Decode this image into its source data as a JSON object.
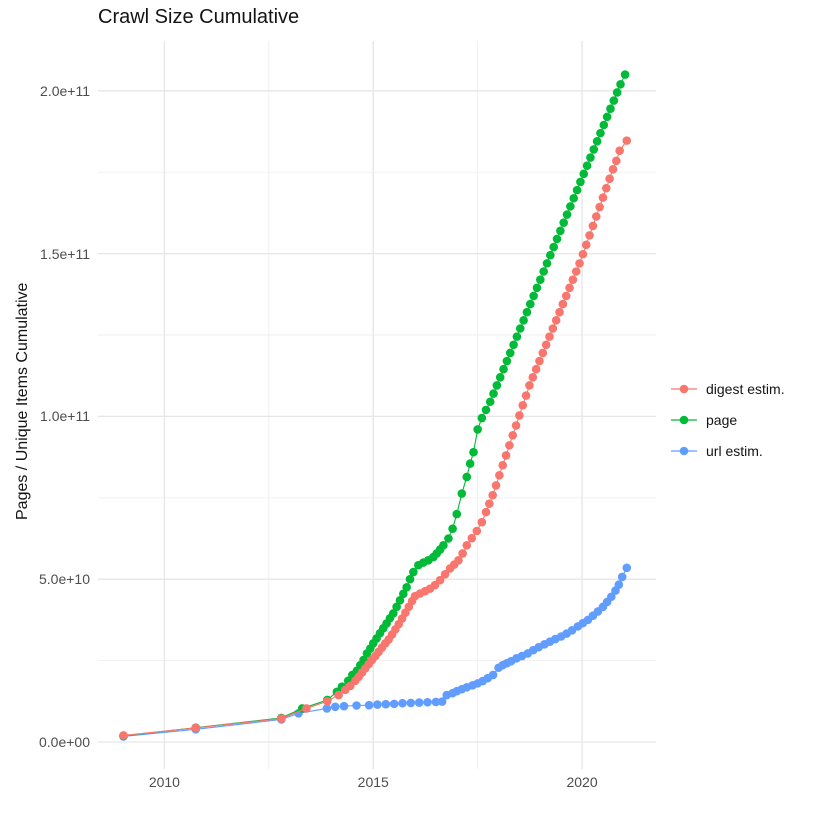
{
  "title": "Crawl Size Cumulative",
  "axes": {
    "y_title": "Pages / Unique Items Cumulative",
    "x_ticks": [
      {
        "value": 2010,
        "label": "2010"
      },
      {
        "value": 2015,
        "label": "2015"
      },
      {
        "value": 2020,
        "label": "2020"
      }
    ],
    "y_ticks": [
      {
        "value": 0,
        "label": "0.0e+00"
      },
      {
        "value": 50000000000.0,
        "label": "5.0e+10"
      },
      {
        "value": 100000000000.0,
        "label": "1.0e+11"
      },
      {
        "value": 150000000000.0,
        "label": "1.5e+11"
      },
      {
        "value": 200000000000.0,
        "label": "2.0e+11"
      }
    ],
    "x_minor": [
      2012.5,
      2017.5
    ],
    "y_minor": [
      25000000000.0,
      75000000000.0,
      125000000000.0,
      175000000000.0
    ],
    "xlim": [
      2008.41,
      2021.77
    ],
    "ylim": [
      -8300000000.0,
      215300000000.0
    ]
  },
  "style": {
    "grid_major_color": "#e6e6e6",
    "grid_minor_color": "#efefef",
    "point_radius": 4.3
  },
  "chart_data": {
    "type": "line",
    "title": "Crawl Size Cumulative",
    "xlabel": "",
    "ylabel": "Pages / Unique Items Cumulative",
    "grid": true,
    "legend_position": "right",
    "xlim": [
      2008.41,
      2021.77
    ],
    "ylim": [
      -8300000000.0,
      215300000000.0
    ],
    "series": [
      {
        "name": "digest estim.",
        "color": "#F8766D",
        "points": [
          [
            2009.02,
            2000000000.0
          ],
          [
            2010.75,
            4300000000.0
          ],
          [
            2012.8,
            7200000000.0
          ],
          [
            2013.4,
            10300000000.0
          ],
          [
            2013.9,
            12500000000.0
          ],
          [
            2014.17,
            14400000000.0
          ],
          [
            2014.33,
            16000000000.0
          ],
          [
            2014.45,
            17200000000.0
          ],
          [
            2014.57,
            18800000000.0
          ],
          [
            2014.65,
            20000000000.0
          ],
          [
            2014.73,
            21300000000.0
          ],
          [
            2014.81,
            22600000000.0
          ],
          [
            2014.89,
            23900000000.0
          ],
          [
            2014.97,
            25200000000.0
          ],
          [
            2015.05,
            26400000000.0
          ],
          [
            2015.13,
            27700000000.0
          ],
          [
            2015.21,
            29000000000.0
          ],
          [
            2015.29,
            30300000000.0
          ],
          [
            2015.37,
            31500000000.0
          ],
          [
            2015.45,
            33000000000.0
          ],
          [
            2015.53,
            34600000000.0
          ],
          [
            2015.61,
            36200000000.0
          ],
          [
            2015.69,
            37900000000.0
          ],
          [
            2015.77,
            39700000000.0
          ],
          [
            2015.85,
            41500000000.0
          ],
          [
            2015.93,
            43300000000.0
          ],
          [
            2016.0,
            44800000000.0
          ],
          [
            2016.12,
            45600000000.0
          ],
          [
            2016.24,
            46300000000.0
          ],
          [
            2016.36,
            47100000000.0
          ],
          [
            2016.48,
            48200000000.0
          ],
          [
            2016.6,
            49700000000.0
          ],
          [
            2016.72,
            51500000000.0
          ],
          [
            2016.84,
            53300000000.0
          ],
          [
            2016.94,
            54500000000.0
          ],
          [
            2017.04,
            55800000000.0
          ],
          [
            2017.14,
            57900000000.0
          ],
          [
            2017.24,
            60400000000.0
          ],
          [
            2017.36,
            62600000000.0
          ],
          [
            2017.48,
            64800000000.0
          ],
          [
            2017.6,
            67500000000.0
          ],
          [
            2017.7,
            70600000000.0
          ],
          [
            2017.78,
            73200000000.0
          ],
          [
            2017.86,
            75800000000.0
          ],
          [
            2017.94,
            78800000000.0
          ],
          [
            2018.02,
            81900000000.0
          ],
          [
            2018.1,
            85000000000.0
          ],
          [
            2018.18,
            88000000000.0
          ],
          [
            2018.26,
            91100000000.0
          ],
          [
            2018.34,
            94200000000.0
          ],
          [
            2018.42,
            97200000000.0
          ],
          [
            2018.5,
            100300000000.0
          ],
          [
            2018.58,
            103400000000.0
          ],
          [
            2018.66,
            106400000000.0
          ],
          [
            2018.74,
            109500000000.0
          ],
          [
            2018.82,
            112000000000.0
          ],
          [
            2018.9,
            114500000000.0
          ],
          [
            2018.98,
            117000000000.0
          ],
          [
            2019.06,
            119500000000.0
          ],
          [
            2019.14,
            122000000000.0
          ],
          [
            2019.22,
            124500000000.0
          ],
          [
            2019.3,
            127000000000.0
          ],
          [
            2019.38,
            129500000000.0
          ],
          [
            2019.46,
            132000000000.0
          ],
          [
            2019.54,
            134500000000.0
          ],
          [
            2019.62,
            137000000000.0
          ],
          [
            2019.7,
            139500000000.0
          ],
          [
            2019.78,
            142000000000.0
          ],
          [
            2019.86,
            144500000000.0
          ],
          [
            2019.94,
            147000000000.0
          ],
          [
            2020.02,
            149800000000.0
          ],
          [
            2020.1,
            152700000000.0
          ],
          [
            2020.18,
            155600000000.0
          ],
          [
            2020.26,
            158500000000.0
          ],
          [
            2020.34,
            161400000000.0
          ],
          [
            2020.42,
            164300000000.0
          ],
          [
            2020.5,
            167200000000.0
          ],
          [
            2020.58,
            170100000000.0
          ],
          [
            2020.66,
            173000000000.0
          ],
          [
            2020.74,
            175900000000.0
          ],
          [
            2020.82,
            178500000000.0
          ],
          [
            2020.9,
            181600000000.0
          ],
          [
            2021.07,
            184700000000.0
          ]
        ]
      },
      {
        "name": "page",
        "color": "#00BA38",
        "points": [
          [
            2009.02,
            1900000000.0
          ],
          [
            2010.75,
            4400000000.0
          ],
          [
            2012.8,
            7400000000.0
          ],
          [
            2013.3,
            10300000000.0
          ],
          [
            2013.9,
            12900000000.0
          ],
          [
            2014.13,
            15400000000.0
          ],
          [
            2014.25,
            17000000000.0
          ],
          [
            2014.4,
            18800000000.0
          ],
          [
            2014.5,
            20600000000.0
          ],
          [
            2014.61,
            21900000000.0
          ],
          [
            2014.69,
            23600000000.0
          ],
          [
            2014.77,
            25200000000.0
          ],
          [
            2014.85,
            27200000000.0
          ],
          [
            2014.93,
            28700000000.0
          ],
          [
            2015.0,
            30300000000.0
          ],
          [
            2015.08,
            31800000000.0
          ],
          [
            2015.16,
            33400000000.0
          ],
          [
            2015.24,
            34900000000.0
          ],
          [
            2015.32,
            36400000000.0
          ],
          [
            2015.4,
            38000000000.0
          ],
          [
            2015.48,
            39500000000.0
          ],
          [
            2015.56,
            41500000000.0
          ],
          [
            2015.64,
            43500000000.0
          ],
          [
            2015.72,
            45500000000.0
          ],
          [
            2015.8,
            47500000000.0
          ],
          [
            2015.88,
            50000000000.0
          ],
          [
            2015.96,
            52200000000.0
          ],
          [
            2016.08,
            54300000000.0
          ],
          [
            2016.2,
            55100000000.0
          ],
          [
            2016.32,
            55800000000.0
          ],
          [
            2016.44,
            56800000000.0
          ],
          [
            2016.52,
            57900000000.0
          ],
          [
            2016.6,
            59100000000.0
          ],
          [
            2016.68,
            60400000000.0
          ],
          [
            2016.8,
            62500000000.0
          ],
          [
            2016.9,
            65500000000.0
          ],
          [
            2017.0,
            70000000000.0
          ],
          [
            2017.12,
            76300000000.0
          ],
          [
            2017.24,
            81400000000.0
          ],
          [
            2017.32,
            85500000000.0
          ],
          [
            2017.4,
            89000000000.0
          ],
          [
            2017.5,
            96000000000.0
          ],
          [
            2017.6,
            99500000000.0
          ],
          [
            2017.7,
            102000000000.0
          ],
          [
            2017.8,
            104500000000.0
          ],
          [
            2017.88,
            107000000000.0
          ],
          [
            2017.96,
            109500000000.0
          ],
          [
            2018.04,
            112000000000.0
          ],
          [
            2018.12,
            114500000000.0
          ],
          [
            2018.2,
            117000000000.0
          ],
          [
            2018.28,
            119500000000.0
          ],
          [
            2018.36,
            122000000000.0
          ],
          [
            2018.44,
            124500000000.0
          ],
          [
            2018.52,
            127000000000.0
          ],
          [
            2018.6,
            129500000000.0
          ],
          [
            2018.68,
            132000000000.0
          ],
          [
            2018.76,
            134500000000.0
          ],
          [
            2018.84,
            137000000000.0
          ],
          [
            2018.92,
            139500000000.0
          ],
          [
            2019.0,
            142000000000.0
          ],
          [
            2019.08,
            144500000000.0
          ],
          [
            2019.16,
            147000000000.0
          ],
          [
            2019.24,
            149500000000.0
          ],
          [
            2019.32,
            152000000000.0
          ],
          [
            2019.4,
            154500000000.0
          ],
          [
            2019.48,
            157000000000.0
          ],
          [
            2019.56,
            159500000000.0
          ],
          [
            2019.64,
            162000000000.0
          ],
          [
            2019.72,
            164500000000.0
          ],
          [
            2019.8,
            167000000000.0
          ],
          [
            2019.88,
            169500000000.0
          ],
          [
            2019.96,
            172000000000.0
          ],
          [
            2020.04,
            174500000000.0
          ],
          [
            2020.12,
            177000000000.0
          ],
          [
            2020.2,
            179500000000.0
          ],
          [
            2020.28,
            182000000000.0
          ],
          [
            2020.36,
            184500000000.0
          ],
          [
            2020.44,
            187000000000.0
          ],
          [
            2020.52,
            189500000000.0
          ],
          [
            2020.6,
            192000000000.0
          ],
          [
            2020.68,
            194500000000.0
          ],
          [
            2020.76,
            197000000000.0
          ],
          [
            2020.84,
            199500000000.0
          ],
          [
            2020.92,
            202000000000.0
          ],
          [
            2021.03,
            205000000000.0
          ]
        ]
      },
      {
        "name": "url estim.",
        "color": "#619CFF",
        "points": [
          [
            2009.02,
            1700000000.0
          ],
          [
            2010.75,
            3900000000.0
          ],
          [
            2012.8,
            6900000000.0
          ],
          [
            2013.21,
            8800000000.0
          ],
          [
            2013.89,
            10300000000.0
          ],
          [
            2014.09,
            10800000000.0
          ],
          [
            2014.3,
            11000000000.0
          ],
          [
            2014.6,
            11200000000.0
          ],
          [
            2014.9,
            11300000000.0
          ],
          [
            2015.1,
            11500000000.0
          ],
          [
            2015.3,
            11600000000.0
          ],
          [
            2015.5,
            11700000000.0
          ],
          [
            2015.7,
            11900000000.0
          ],
          [
            2015.9,
            12000000000.0
          ],
          [
            2016.1,
            12100000000.0
          ],
          [
            2016.3,
            12200000000.0
          ],
          [
            2016.5,
            12300000000.0
          ],
          [
            2016.65,
            12400000000.0
          ],
          [
            2016.76,
            14400000000.0
          ],
          [
            2016.9,
            15000000000.0
          ],
          [
            2017.0,
            15600000000.0
          ],
          [
            2017.12,
            16200000000.0
          ],
          [
            2017.24,
            16800000000.0
          ],
          [
            2017.38,
            17400000000.0
          ],
          [
            2017.5,
            18000000000.0
          ],
          [
            2017.62,
            18700000000.0
          ],
          [
            2017.74,
            19600000000.0
          ],
          [
            2017.87,
            20600000000.0
          ],
          [
            2018.0,
            22800000000.0
          ],
          [
            2018.1,
            23600000000.0
          ],
          [
            2018.2,
            24200000000.0
          ],
          [
            2018.3,
            24800000000.0
          ],
          [
            2018.43,
            25700000000.0
          ],
          [
            2018.56,
            26400000000.0
          ],
          [
            2018.7,
            27200000000.0
          ],
          [
            2018.83,
            28200000000.0
          ],
          [
            2018.96,
            29100000000.0
          ],
          [
            2019.1,
            30000000000.0
          ],
          [
            2019.23,
            30800000000.0
          ],
          [
            2019.36,
            31600000000.0
          ],
          [
            2019.5,
            32400000000.0
          ],
          [
            2019.63,
            33300000000.0
          ],
          [
            2019.76,
            34300000000.0
          ],
          [
            2019.9,
            35500000000.0
          ],
          [
            2020.02,
            36500000000.0
          ],
          [
            2020.14,
            37500000000.0
          ],
          [
            2020.26,
            38800000000.0
          ],
          [
            2020.38,
            40100000000.0
          ],
          [
            2020.5,
            41500000000.0
          ],
          [
            2020.6,
            43000000000.0
          ],
          [
            2020.7,
            44600000000.0
          ],
          [
            2020.8,
            46500000000.0
          ],
          [
            2020.88,
            48300000000.0
          ],
          [
            2020.96,
            50700000000.0
          ],
          [
            2021.07,
            53500000000.0
          ]
        ]
      }
    ]
  }
}
